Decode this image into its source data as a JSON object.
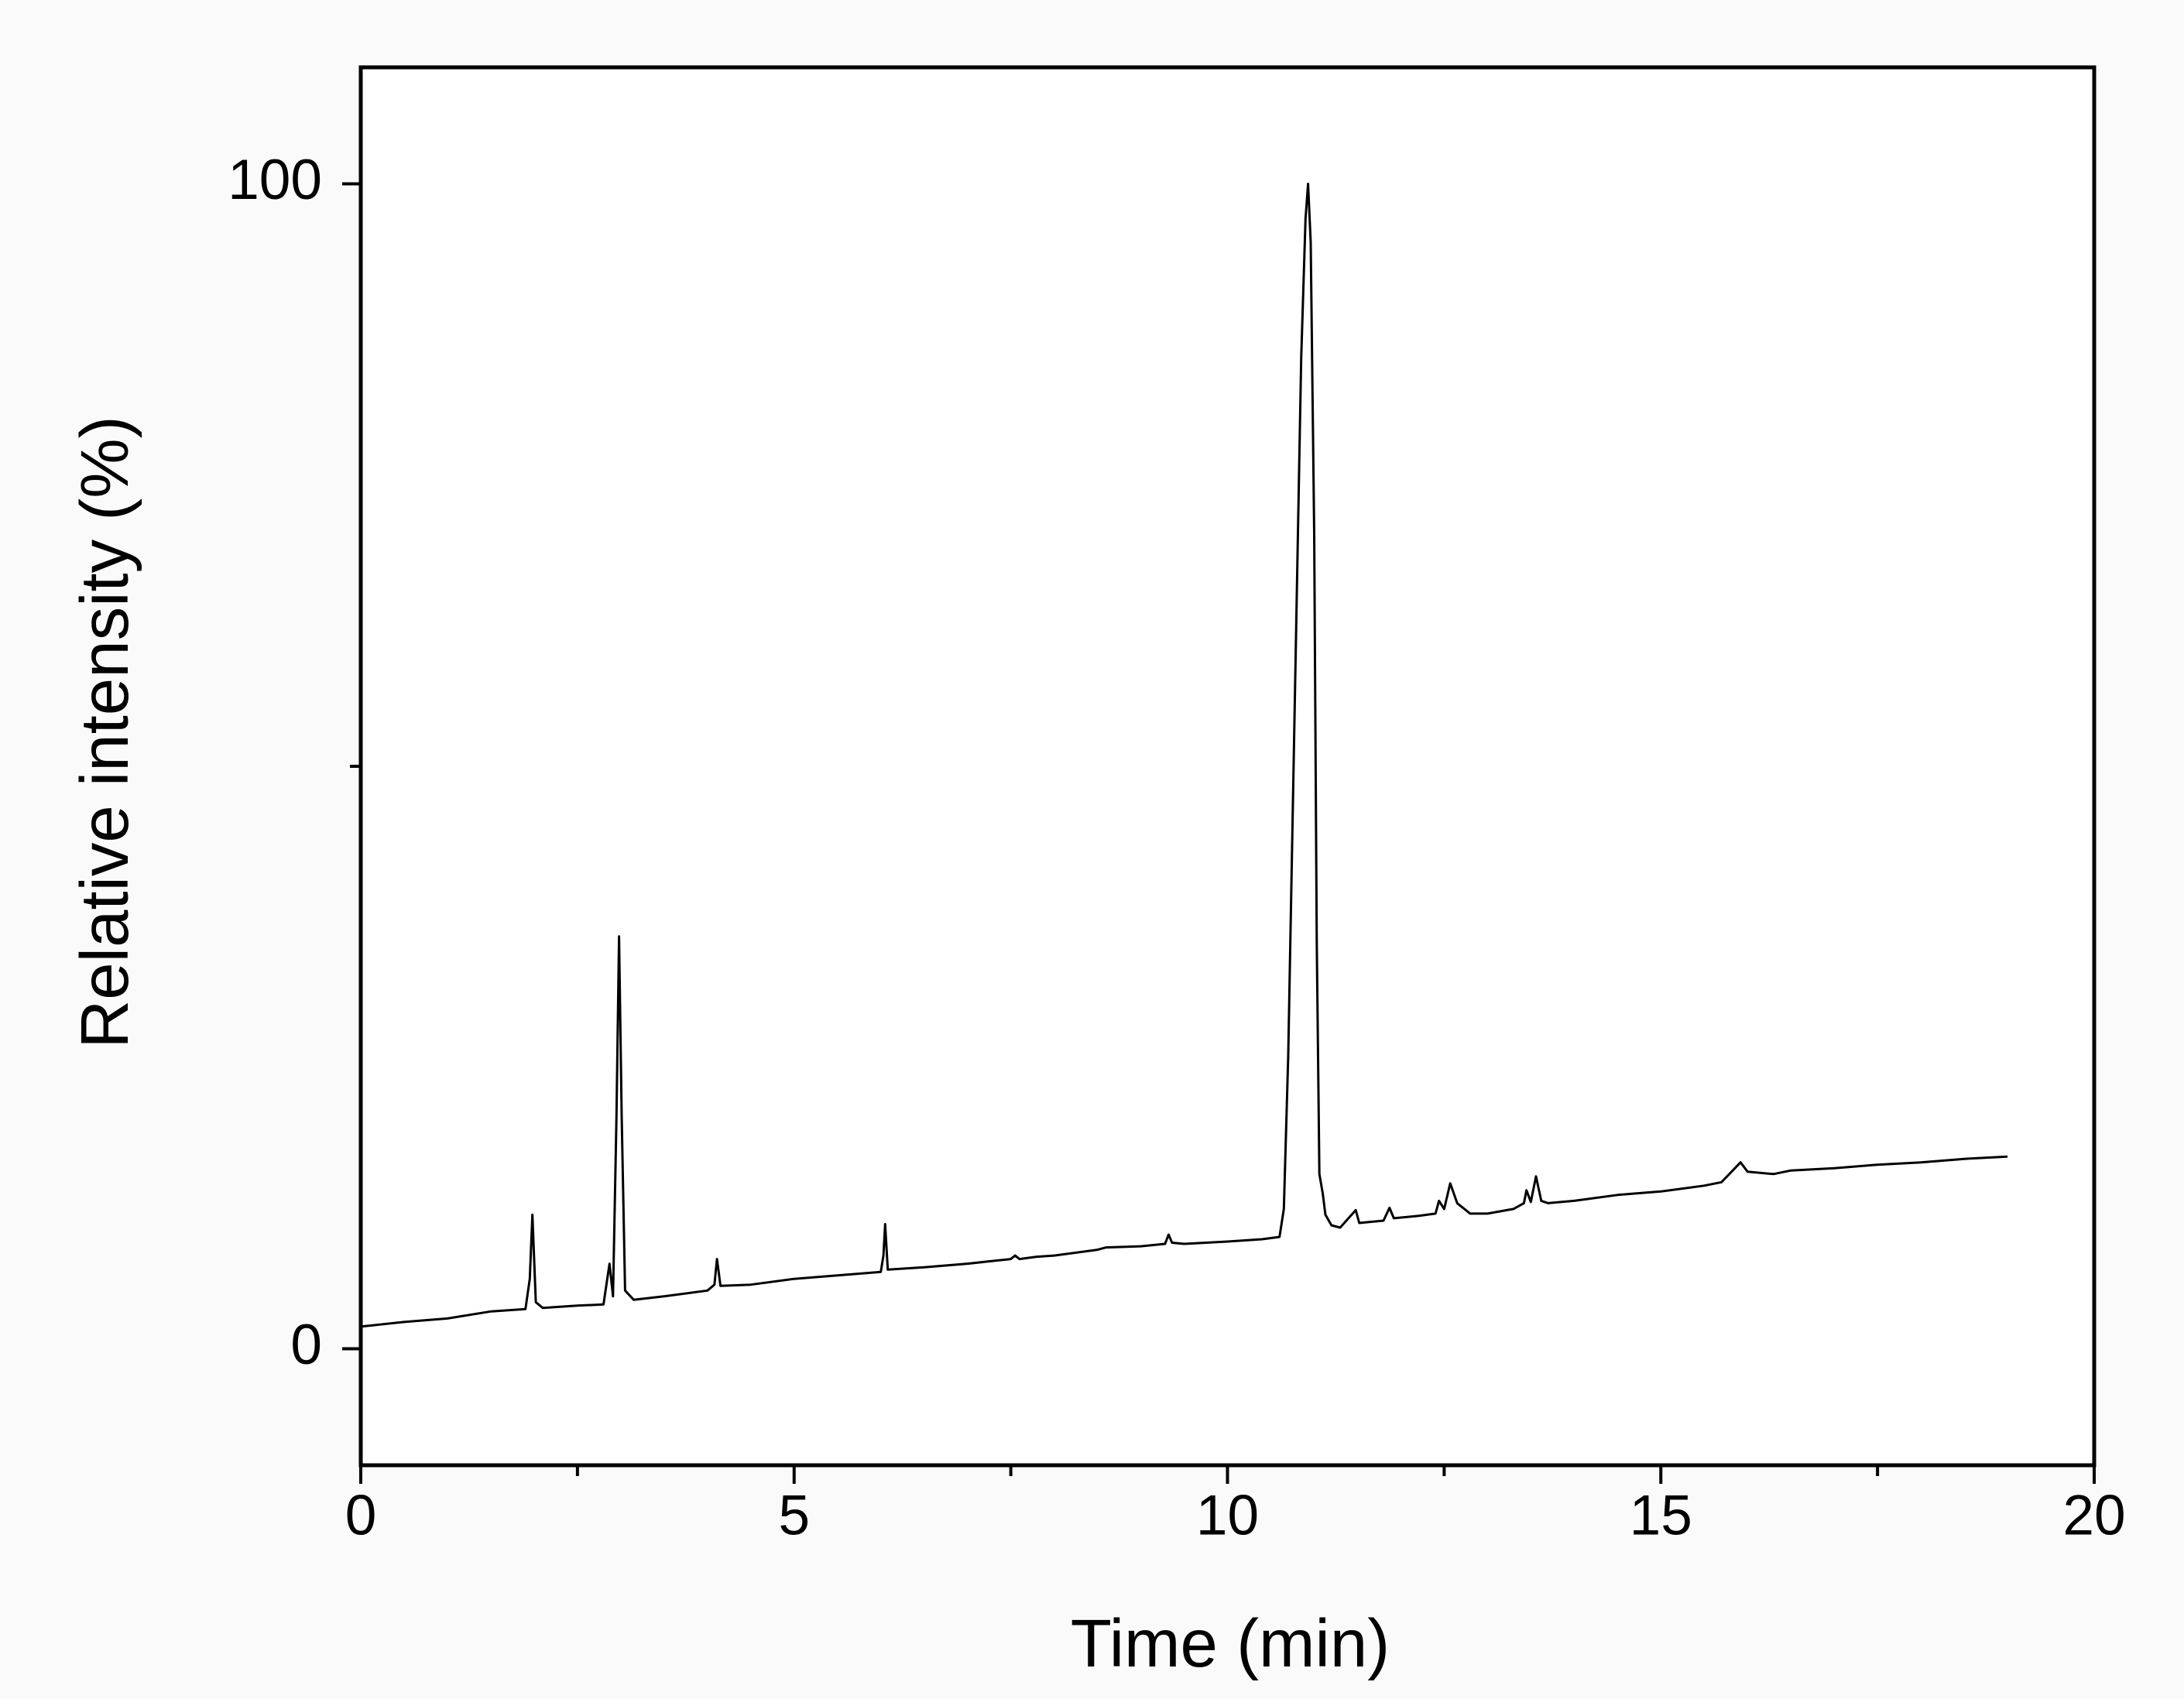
{
  "chart_data": {
    "type": "line",
    "xlabel": "Time (min)",
    "ylabel": "Relative intensity (%)",
    "xlim": [
      0,
      20
    ],
    "xticks": [
      0,
      5,
      10,
      15,
      20
    ],
    "xminor_ticks": [
      2.5,
      7.5,
      12.5,
      17.5
    ],
    "ylim": [
      -10,
      110
    ],
    "yticks": [
      0,
      100
    ],
    "yminor_ticks": [
      50
    ],
    "color": "#000000",
    "x": [
      0,
      0.5,
      1.0,
      1.5,
      1.9,
      1.95,
      1.98,
      2.02,
      2.1,
      2.5,
      2.8,
      2.87,
      2.91,
      2.95,
      2.98,
      3.01,
      3.05,
      3.15,
      3.5,
      4.0,
      4.08,
      4.11,
      4.15,
      4.5,
      5.0,
      5.5,
      6.0,
      6.03,
      6.05,
      6.08,
      6.5,
      7.0,
      7.5,
      7.55,
      7.6,
      7.8,
      8.0,
      8.5,
      8.6,
      9.0,
      9.28,
      9.32,
      9.36,
      9.5,
      10.0,
      10.4,
      10.6,
      10.65,
      10.7,
      10.75,
      10.8,
      10.85,
      10.9,
      10.93,
      10.96,
      11.0,
      11.03,
      11.06,
      11.1,
      11.13,
      11.2,
      11.3,
      11.48,
      11.52,
      11.8,
      11.87,
      11.92,
      12.2,
      12.4,
      12.44,
      12.5,
      12.57,
      12.65,
      12.8,
      13.0,
      13.3,
      13.42,
      13.45,
      13.5,
      13.56,
      13.62,
      13.7,
      14.0,
      14.5,
      15.0,
      15.5,
      15.7,
      15.92,
      16.0,
      16.3,
      16.5,
      17.0,
      17.5,
      18.0,
      18.5,
      19.0
    ],
    "values": [
      1.9,
      2.3,
      2.6,
      3.2,
      3.4,
      6,
      11.5,
      4,
      3.5,
      3.7,
      3.8,
      7.3,
      4.5,
      20,
      35.4,
      20,
      5,
      4.2,
      4.5,
      5.0,
      5.5,
      7.7,
      5.4,
      5.5,
      6.0,
      6.3,
      6.6,
      8,
      10.7,
      6.8,
      7.0,
      7.3,
      7.7,
      8,
      7.7,
      7.9,
      8.0,
      8.5,
      8.7,
      8.8,
      9.0,
      9.8,
      9.1,
      9.0,
      9.2,
      9.4,
      9.6,
      12,
      25,
      45,
      65,
      85,
      97,
      100,
      95,
      70,
      35,
      15,
      13.3,
      11.5,
      10.6,
      10.4,
      11.9,
      10.8,
      11.0,
      12.1,
      11.2,
      11.4,
      11.6,
      12.7,
      12.0,
      14.2,
      12.5,
      11.6,
      11.6,
      12.0,
      12.5,
      13.6,
      12.6,
      14.8,
      12.7,
      12.5,
      12.7,
      13.2,
      13.5,
      14.0,
      14.3,
      16.0,
      15.2,
      15.0,
      15.3,
      15.5,
      15.8,
      16.0,
      16.3,
      16.5
    ]
  }
}
